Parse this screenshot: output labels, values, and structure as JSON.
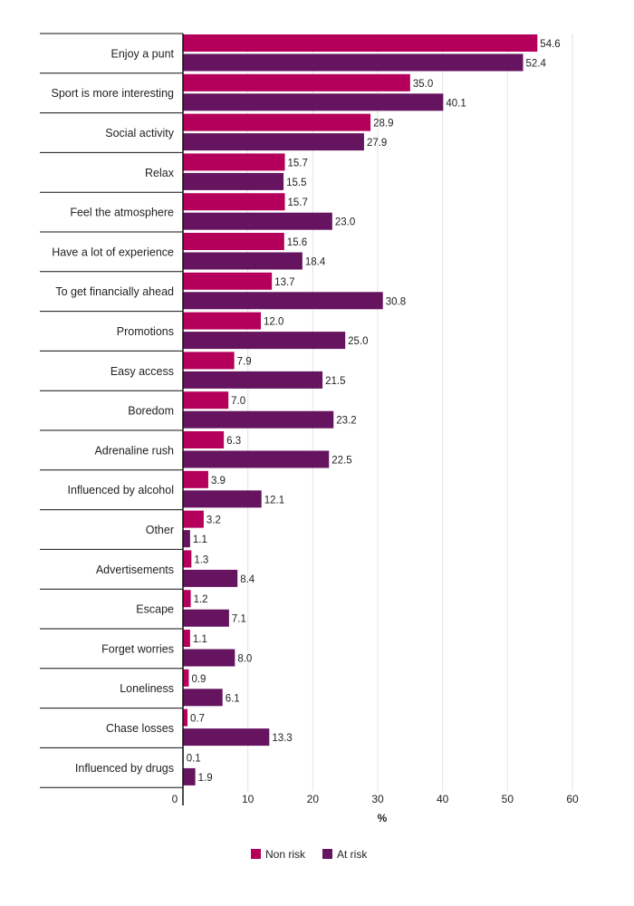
{
  "chart_data": {
    "type": "bar",
    "orientation": "horizontal",
    "categories": [
      "Enjoy a punt",
      "Sport is more interesting",
      "Social activity",
      "Relax",
      "Feel the atmosphere",
      "Have a lot of experience",
      "To get financially ahead",
      "Promotions",
      "Easy access",
      "Boredom",
      "Adrenaline rush",
      "Influenced by alcohol",
      "Other",
      "Advertisements",
      "Escape",
      "Forget worries",
      "Loneliness",
      "Chase losses",
      "Influenced by drugs"
    ],
    "series": [
      {
        "name": "Non risk",
        "color": "#b5005b",
        "values": [
          54.6,
          35.0,
          28.9,
          15.7,
          15.7,
          15.6,
          13.7,
          12.0,
          7.9,
          7.0,
          6.3,
          3.9,
          3.2,
          1.3,
          1.2,
          1.1,
          0.9,
          0.7,
          0.1
        ],
        "labels": [
          "54.6",
          "35.0",
          "28.9",
          "15.7",
          "15.7",
          "15.6",
          "13.7",
          "12.0",
          "7.9",
          "7.0",
          "6.3",
          "3.9",
          "3.2",
          "1.3",
          "1.2",
          "1.1",
          "0.9",
          "0.7",
          "0.1"
        ]
      },
      {
        "name": "At risk",
        "color": "#66145f",
        "values": [
          52.4,
          40.1,
          27.9,
          15.5,
          23.0,
          18.4,
          30.8,
          25.0,
          21.5,
          23.2,
          22.5,
          12.1,
          1.1,
          8.4,
          7.1,
          8.0,
          6.1,
          13.3,
          1.9
        ],
        "labels": [
          "52.4",
          "40.1",
          "27.9",
          "15.5",
          "23.0",
          "18.4",
          "30.8",
          "25.0",
          "21.5",
          "23.2",
          "22.5",
          "12.1",
          "1.1",
          "8.4",
          "7.1",
          "8.0",
          "6.1",
          "13.3",
          "1.9"
        ]
      }
    ],
    "xlabel": "%",
    "ylabel": "",
    "xlim": [
      0,
      60
    ],
    "xticks": [
      "0",
      "10",
      "20",
      "30",
      "40",
      "50",
      "60"
    ],
    "grid": true,
    "legend_position": "bottom-center"
  }
}
